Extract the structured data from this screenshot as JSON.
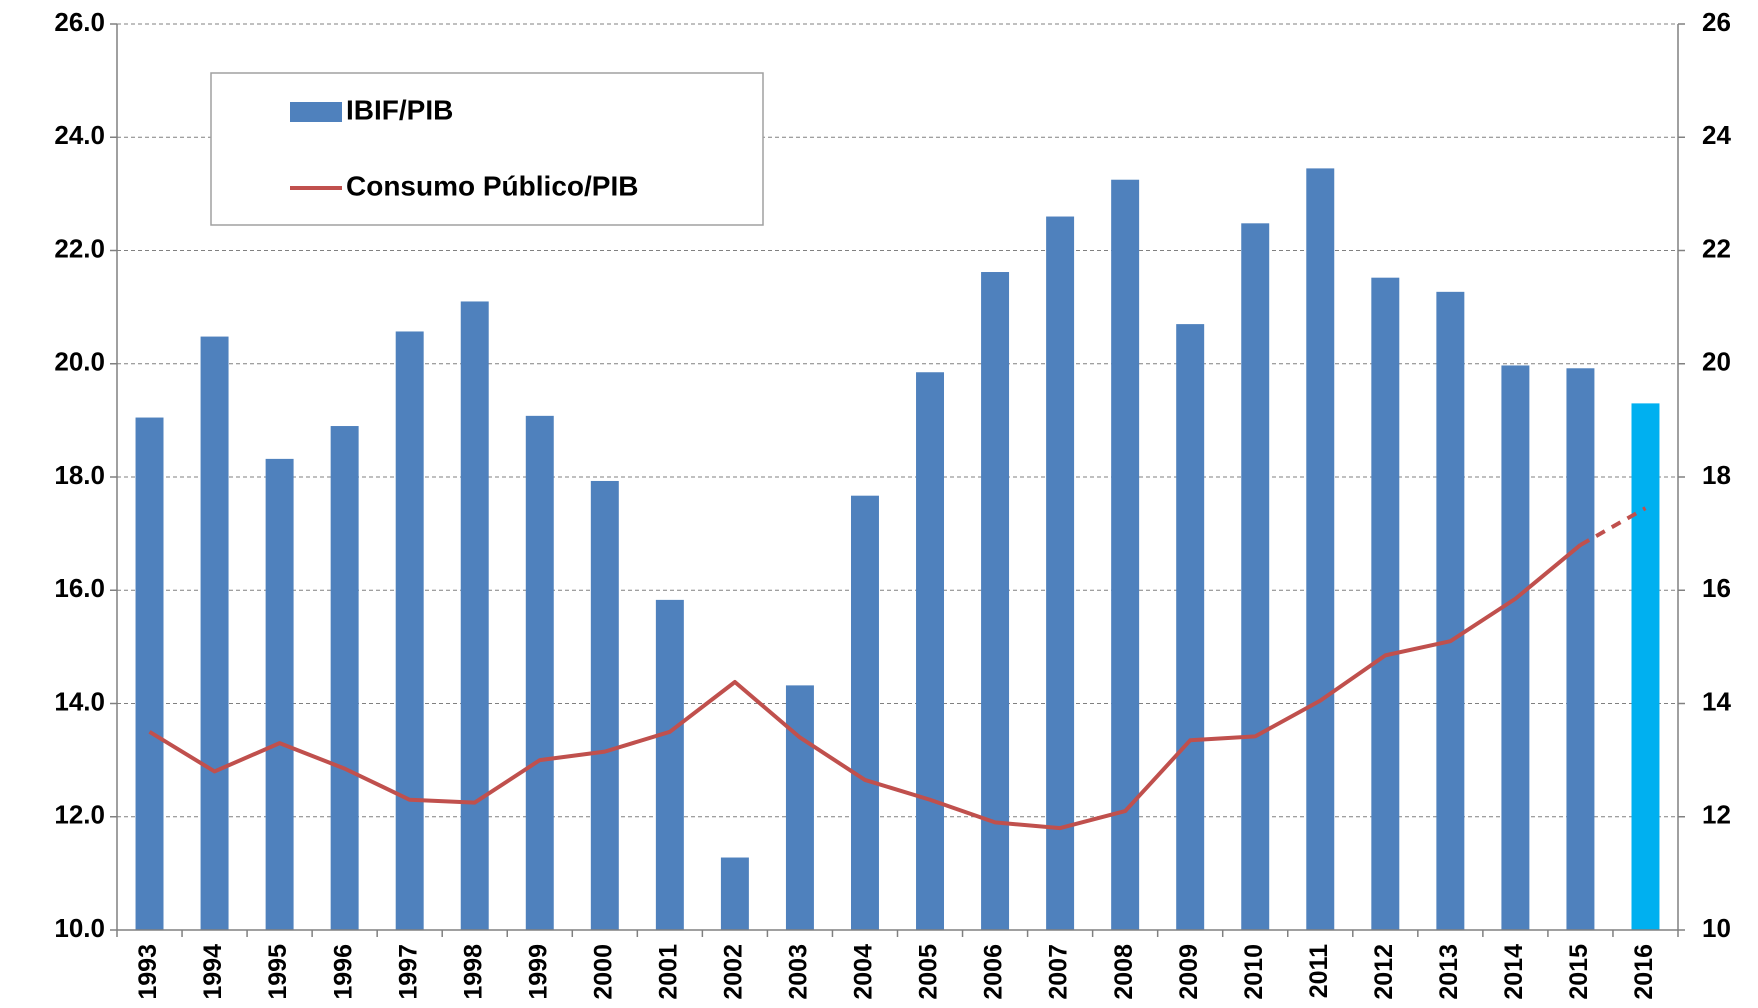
{
  "chart_data": {
    "type": "bar",
    "categories": [
      "1993",
      "1994",
      "1995",
      "1996",
      "1997",
      "1998",
      "1999",
      "2000",
      "2001",
      "2002",
      "2003",
      "2004",
      "2005",
      "2006",
      "2007",
      "2008",
      "2009",
      "2010",
      "2011",
      "2012",
      "2013",
      "2014",
      "2015",
      "2016"
    ],
    "series": [
      {
        "name": "IBIF/PIB",
        "type": "bar",
        "color": "#4f81bd",
        "colors": [
          "#4f81bd",
          "#4f81bd",
          "#4f81bd",
          "#4f81bd",
          "#4f81bd",
          "#4f81bd",
          "#4f81bd",
          "#4f81bd",
          "#4f81bd",
          "#4f81bd",
          "#4f81bd",
          "#4f81bd",
          "#4f81bd",
          "#4f81bd",
          "#4f81bd",
          "#4f81bd",
          "#4f81bd",
          "#4f81bd",
          "#4f81bd",
          "#4f81bd",
          "#4f81bd",
          "#4f81bd",
          "#4f81bd",
          "#00b0f0"
        ],
        "values": [
          19.05,
          20.48,
          18.32,
          18.9,
          20.57,
          21.1,
          19.08,
          17.93,
          15.83,
          11.28,
          14.32,
          17.67,
          19.85,
          21.62,
          22.6,
          23.25,
          20.7,
          22.48,
          23.45,
          21.52,
          21.27,
          19.97,
          19.92,
          19.3
        ]
      },
      {
        "name": "Consumo Público/PIB",
        "type": "line",
        "axis": "y2",
        "color": "#c0504d",
        "dash_from_index": 22,
        "values": [
          13.5,
          12.8,
          13.3,
          12.85,
          12.3,
          12.25,
          13.0,
          13.15,
          13.5,
          14.38,
          13.4,
          12.65,
          12.3,
          11.9,
          11.8,
          12.1,
          13.35,
          13.42,
          14.05,
          14.85,
          15.1,
          15.85,
          16.8,
          17.45
        ]
      }
    ],
    "ylim": [
      10,
      26
    ],
    "yticks": [
      {
        "value": 10,
        "label": "10.0"
      },
      {
        "value": 12,
        "label": "12.0"
      },
      {
        "value": 14,
        "label": "14.0"
      },
      {
        "value": 16,
        "label": "16.0"
      },
      {
        "value": 18,
        "label": "18.0"
      },
      {
        "value": 20,
        "label": "20.0"
      },
      {
        "value": 22,
        "label": "22.0"
      },
      {
        "value": 24,
        "label": "24.0"
      },
      {
        "value": 26,
        "label": "26.0"
      }
    ],
    "y2lim": [
      10,
      26
    ],
    "y2ticks": [
      10,
      12,
      14,
      16,
      18,
      20,
      22,
      24,
      26
    ],
    "grid": true,
    "legend": "upper left"
  }
}
